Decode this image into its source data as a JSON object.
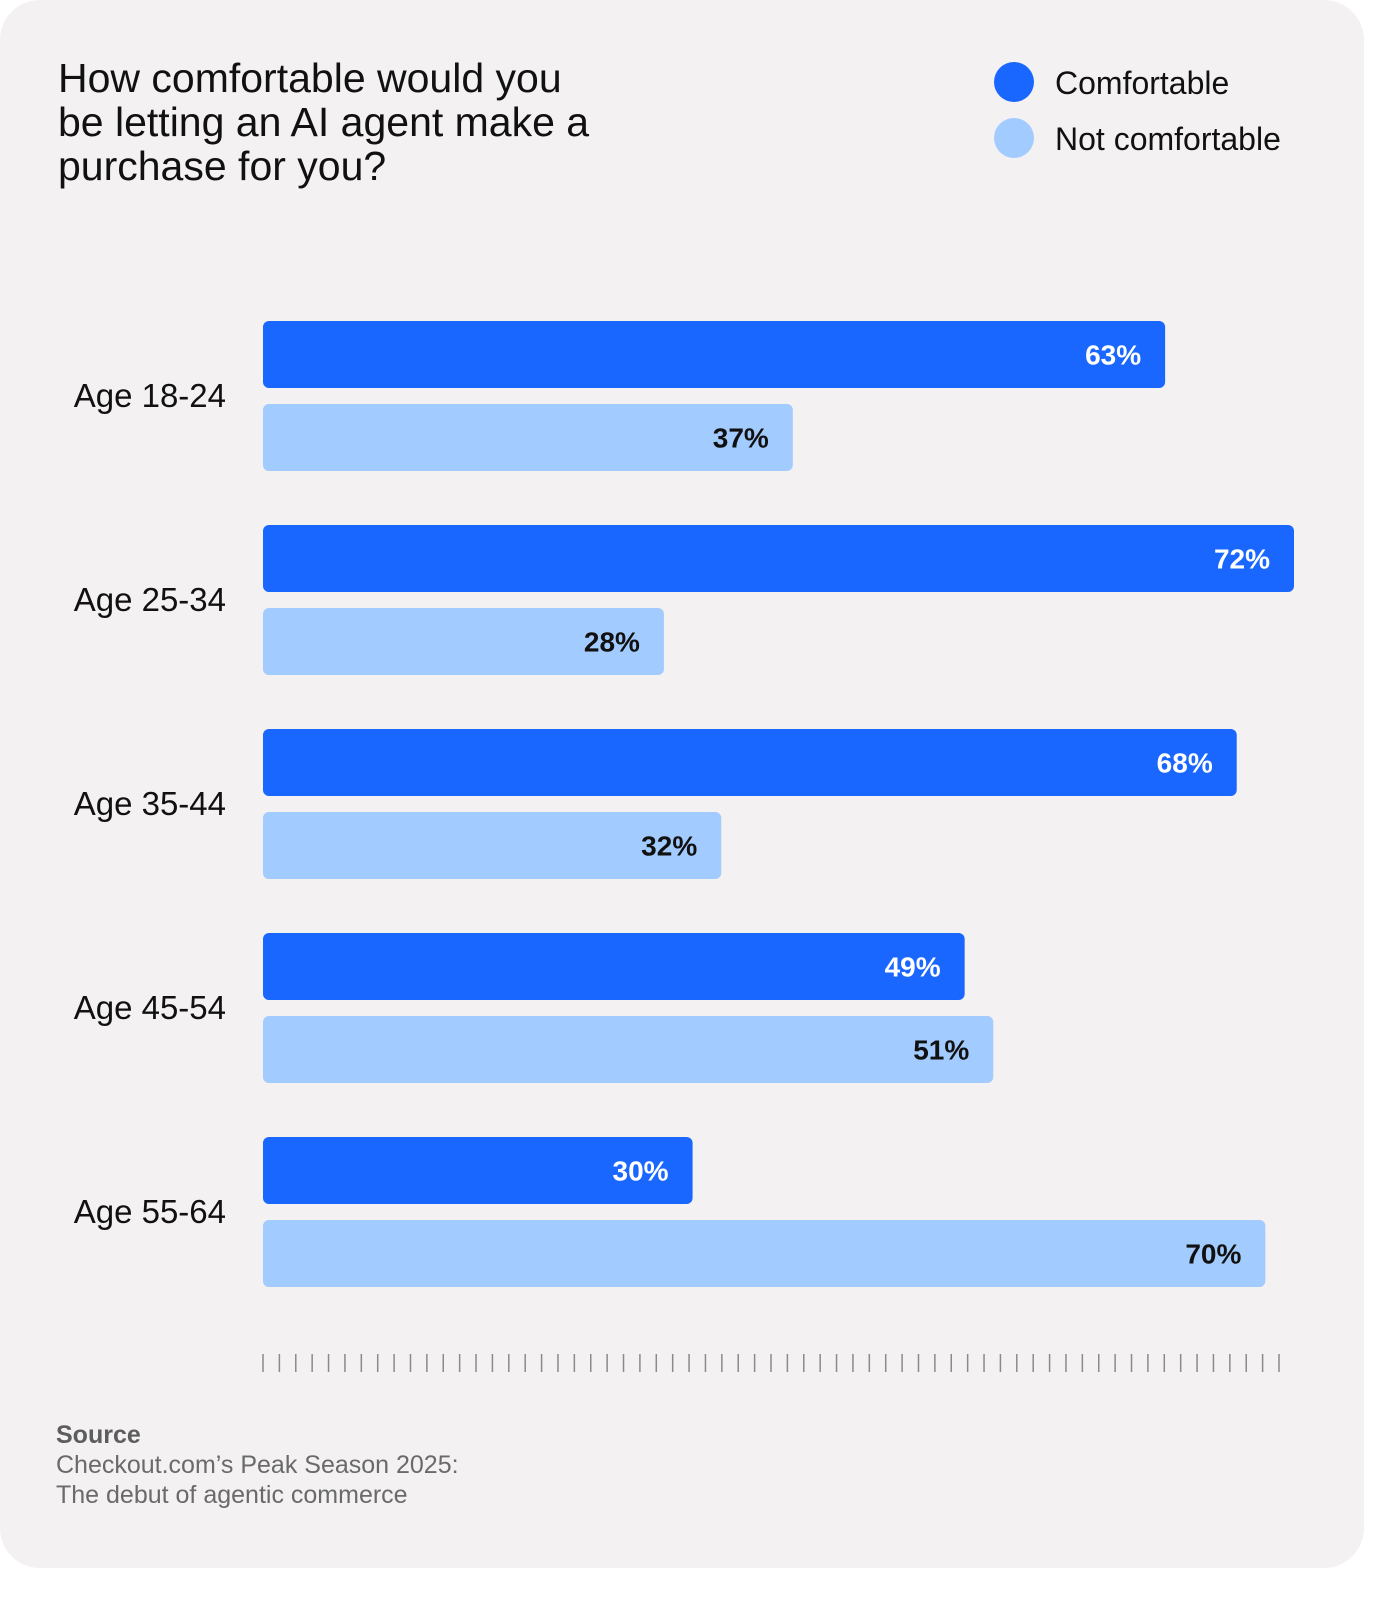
{
  "colors": {
    "card_background": "#f3f1f2",
    "comfortable": "#1967ff",
    "not_comfortable": "#a2cbff",
    "label_on_dark": "#ffffff",
    "label_on_light": "#111111",
    "tick_color": "#8a8a8a"
  },
  "chart_data": {
    "type": "bar",
    "orientation": "horizontal",
    "title": "How comfortable would you be letting an AI agent make a purchase for you?",
    "categories": [
      "Age 18-24",
      "Age 25-34",
      "Age 35-44",
      "Age 45-54",
      "Age 55-64"
    ],
    "series": [
      {
        "name": "Comfortable",
        "values": [
          63,
          72,
          68,
          49,
          30
        ],
        "labels": [
          "63%",
          "72%",
          "68%",
          "49%",
          "30%"
        ]
      },
      {
        "name": "Not comfortable",
        "values": [
          37,
          28,
          32,
          51,
          70
        ],
        "labels": [
          "37%",
          "28%",
          "32%",
          "51%",
          "70%"
        ]
      }
    ],
    "xlim": [
      0,
      72
    ],
    "legend_position": "top-right",
    "grid": false,
    "axis_ticks": "minor tick marks along bottom, no labels"
  },
  "source": {
    "heading": "Source",
    "text": "Checkout.com’s Peak Season 2025:\nThe debut of agentic commerce"
  }
}
